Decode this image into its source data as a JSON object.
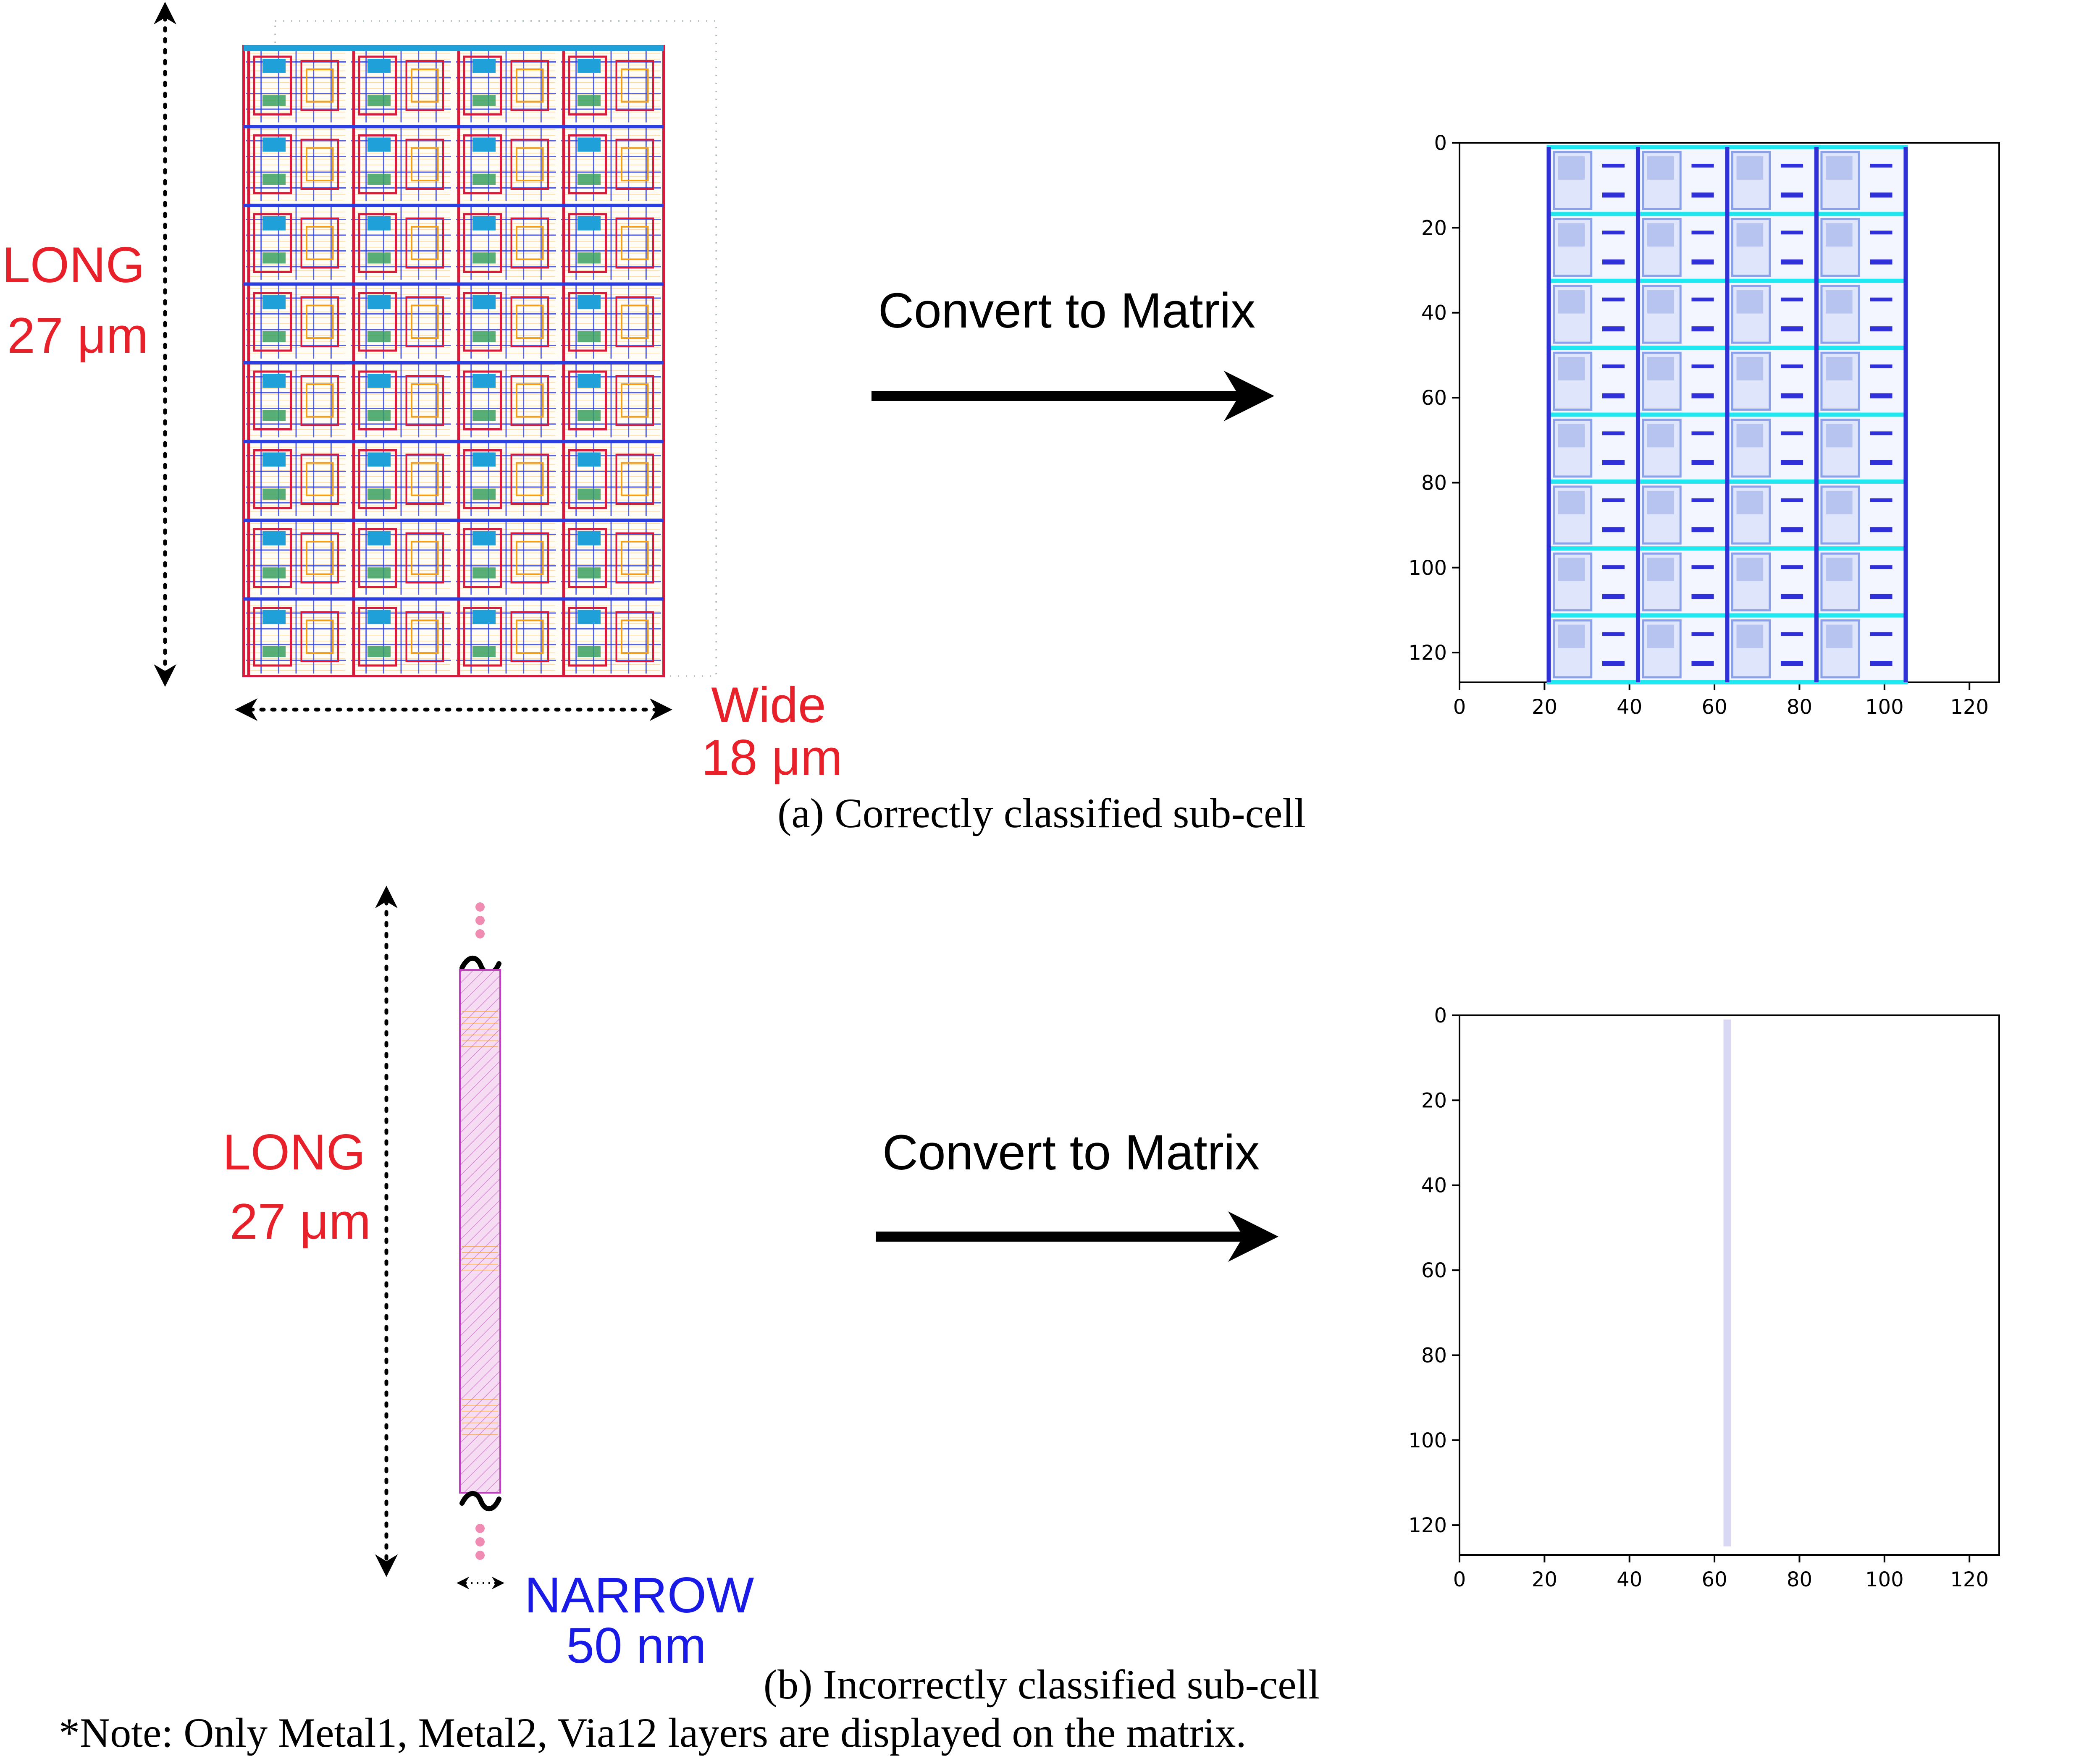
{
  "panel_a": {
    "dim_long_label": "LONG",
    "dim_long_value": "27 μm",
    "dim_wide_label": "Wide",
    "dim_wide_value": "18 μm",
    "arrow_label": "Convert to Matrix",
    "caption": "(a) Correctly classified sub-cell",
    "layout_grid": {
      "columns": 4,
      "rows": 8
    },
    "matrix_plot": {
      "x_ticks": [
        "0",
        "20",
        "40",
        "60",
        "80",
        "100",
        "120"
      ],
      "y_ticks": [
        "0",
        "20",
        "40",
        "60",
        "80",
        "100",
        "120"
      ],
      "xlim": [
        0,
        127
      ],
      "ylim": [
        127,
        0
      ],
      "content_x_range": [
        21,
        105
      ],
      "cell_columns": 4,
      "cell_rows": 8
    }
  },
  "panel_b": {
    "dim_long_label": "LONG",
    "dim_long_value": "27 μm",
    "dim_narrow_label": "NARROW",
    "dim_narrow_value": "50 nm",
    "arrow_label": "Convert to Matrix",
    "caption": "(b) Incorrectly classified sub-cell",
    "matrix_plot": {
      "x_ticks": [
        "0",
        "20",
        "40",
        "60",
        "80",
        "100",
        "120"
      ],
      "y_ticks": [
        "0",
        "20",
        "40",
        "60",
        "80",
        "100",
        "120"
      ],
      "xlim": [
        0,
        127
      ],
      "ylim": [
        127,
        0
      ],
      "line_x": 63,
      "line_y_range": [
        1,
        125
      ]
    }
  },
  "note": "*Note: Only Metal1, Metal2, Via12 layers are displayed on the matrix.",
  "colors": {
    "dim_red": "#e8202a",
    "dim_blue": "#1a1ae6",
    "arrow": "#000000",
    "metal_red": "#d81b3c",
    "metal_blue": "#2b3ee0",
    "metal_orange": "#f0a020",
    "via_cyan": "#1fa0d8",
    "matrix_blue": "#3030d8",
    "matrix_cyan": "#20e8f0",
    "strip_fill": "#f2c8ec",
    "strip_line": "#c040c0",
    "dots_pink": "#f08cb4"
  }
}
